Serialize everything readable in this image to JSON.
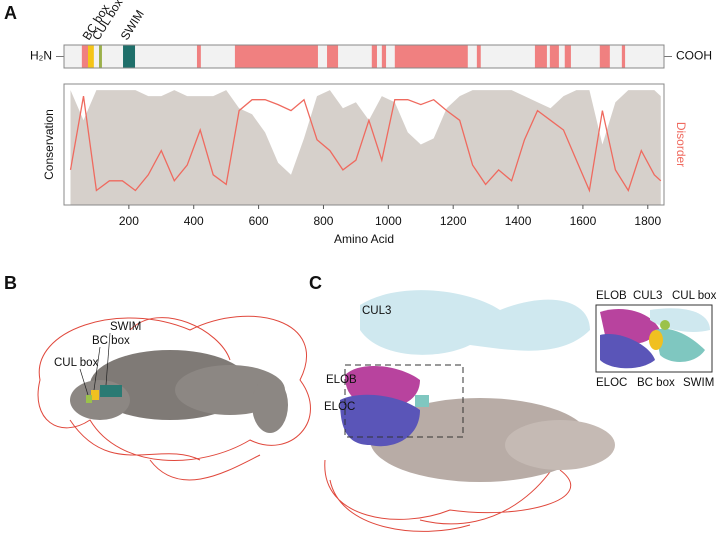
{
  "panel_labels": [
    "A",
    "B",
    "C"
  ],
  "chart_data": {
    "type": "line",
    "protein_bar": {
      "n_terminus": "H₂N",
      "c_terminus": "COOH",
      "domains": [
        {
          "name": "BC box",
          "color": "#f5c518",
          "range": [
            74,
            92
          ]
        },
        {
          "name": "CUL box",
          "color": "#9bb04a",
          "range": [
            108,
            117
          ]
        },
        {
          "name": "SWIM",
          "color": "#1f6f6a",
          "range": [
            182,
            219
          ]
        }
      ],
      "disorder_color": "#f08080",
      "disordered_regions": [
        [
          55,
          74
        ],
        [
          410,
          422
        ],
        [
          527,
          783
        ],
        [
          811,
          845
        ],
        [
          949,
          965
        ],
        [
          980,
          993
        ],
        [
          1020,
          1245
        ],
        [
          1273,
          1285
        ],
        [
          1452,
          1489
        ],
        [
          1498,
          1526
        ],
        [
          1544,
          1563
        ],
        [
          1652,
          1683
        ],
        [
          1720,
          1730
        ]
      ]
    },
    "x": [
      20,
      60,
      100,
      140,
      180,
      220,
      260,
      300,
      340,
      380,
      420,
      460,
      500,
      540,
      580,
      620,
      660,
      700,
      740,
      780,
      820,
      860,
      900,
      940,
      980,
      1020,
      1060,
      1100,
      1140,
      1180,
      1220,
      1260,
      1300,
      1340,
      1380,
      1420,
      1460,
      1500,
      1540,
      1580,
      1620,
      1660,
      1700,
      1740,
      1780,
      1820,
      1840
    ],
    "series": [
      {
        "name": "Conservation",
        "color": "#d6d0cb",
        "values": [
          0.95,
          0.7,
          0.95,
          0.95,
          0.95,
          0.95,
          0.9,
          0.9,
          0.95,
          0.9,
          0.9,
          0.9,
          0.95,
          0.8,
          0.75,
          0.6,
          0.35,
          0.25,
          0.55,
          0.9,
          0.95,
          0.8,
          0.85,
          0.7,
          0.9,
          0.85,
          0.6,
          0.5,
          0.55,
          0.8,
          0.9,
          0.95,
          0.95,
          0.95,
          0.95,
          0.9,
          0.85,
          0.8,
          0.9,
          0.95,
          0.95,
          0.5,
          0.85,
          0.95,
          0.95,
          0.95,
          0.9
        ]
      },
      {
        "name": "Disorder",
        "color": "#ef6a5f",
        "values": [
          0.29,
          0.9,
          0.12,
          0.2,
          0.2,
          0.12,
          0.25,
          0.45,
          0.2,
          0.33,
          0.62,
          0.25,
          0.17,
          0.78,
          0.87,
          0.87,
          0.83,
          0.78,
          0.87,
          0.54,
          0.45,
          0.29,
          0.37,
          0.7,
          0.37,
          0.87,
          0.87,
          0.83,
          0.87,
          0.78,
          0.7,
          0.33,
          0.17,
          0.29,
          0.2,
          0.54,
          0.78,
          0.7,
          0.62,
          0.37,
          0.12,
          0.78,
          0.29,
          0.12,
          0.45,
          0.25,
          0.2
        ]
      }
    ],
    "xlabel": "Amino Acid",
    "xlim": [
      0,
      1850
    ],
    "xticks": [
      200,
      400,
      600,
      800,
      1000,
      1200,
      1400,
      1600,
      1800
    ],
    "ylim": [
      0,
      1
    ]
  },
  "panel_b": {
    "labels": [
      "SWIM",
      "BC box",
      "CUL box"
    ]
  },
  "panel_c": {
    "labels": [
      "CUL3",
      "ELOB",
      "ELOC"
    ],
    "inset_labels": [
      "ELOB",
      "CUL3",
      "CUL box",
      "ELOC",
      "BC box",
      "SWIM"
    ]
  }
}
